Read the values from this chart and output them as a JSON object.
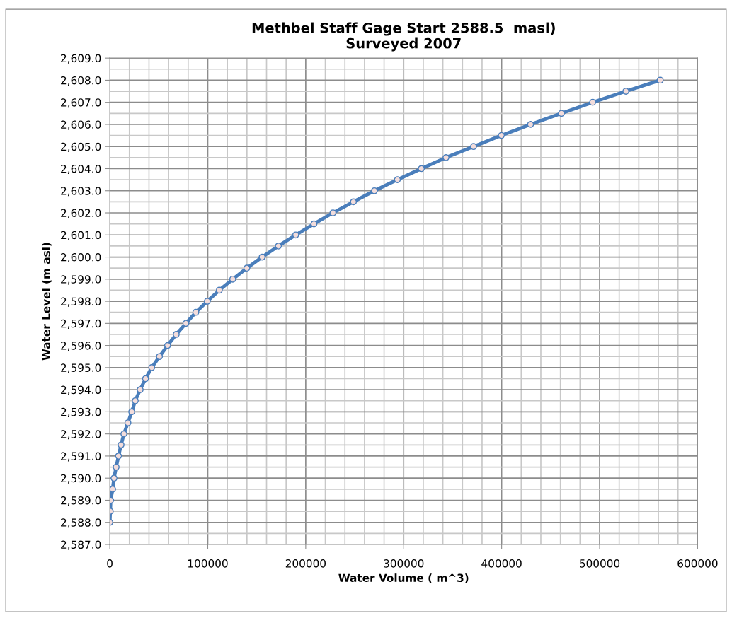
{
  "chart_data": {
    "type": "line",
    "title": "Methbel Staff Gage Start 2588.5  masl)\nSurveyed 2007",
    "xlabel": "Water Volume ( m^3)",
    "ylabel": "Water Level (m asl)",
    "x": [
      0,
      500,
      900,
      2900,
      4300,
      6500,
      8900,
      11500,
      14400,
      18500,
      22400,
      26000,
      31000,
      36500,
      42800,
      50700,
      59000,
      67800,
      77700,
      87800,
      99500,
      111800,
      125500,
      139900,
      155500,
      172100,
      189800,
      208400,
      227800,
      248700,
      270100,
      293600,
      318000,
      343200,
      371300,
      399700,
      429500,
      461000,
      492900,
      526800,
      561900
    ],
    "series": [
      {
        "color": "#4a7ebb",
        "values": [
          2588.0,
          2588.5,
          2589.0,
          2589.5,
          2590.0,
          2590.5,
          2591.0,
          2591.5,
          2592.0,
          2592.5,
          2593.0,
          2593.5,
          2594.0,
          2594.5,
          2595.0,
          2595.5,
          2596.0,
          2596.5,
          2597.0,
          2597.5,
          2598.0,
          2598.5,
          2599.0,
          2599.5,
          2600.0,
          2600.5,
          2601.0,
          2601.5,
          2602.0,
          2602.5,
          2603.0,
          2603.5,
          2604.0,
          2604.5,
          2605.0,
          2605.5,
          2606.0,
          2606.5,
          2607.0,
          2607.5,
          2608.0
        ]
      }
    ],
    "xlim": [
      0,
      600000
    ],
    "xticks": [
      0,
      100000,
      200000,
      300000,
      400000,
      500000,
      600000
    ],
    "ylim": [
      2587,
      2609
    ],
    "yticks": [
      {
        "value": 2587,
        "label": "2,587.0"
      },
      {
        "value": 2588,
        "label": "2,588.0"
      },
      {
        "value": 2589,
        "label": "2,589.0"
      },
      {
        "value": 2590,
        "label": "2,590.0"
      },
      {
        "value": 2591,
        "label": "2,591.0"
      },
      {
        "value": 2592,
        "label": "2,592.0"
      },
      {
        "value": 2593,
        "label": "2,593.0"
      },
      {
        "value": 2594,
        "label": "2,594.0"
      },
      {
        "value": 2595,
        "label": "2,595.0"
      },
      {
        "value": 2596,
        "label": "2,596.0"
      },
      {
        "value": 2597,
        "label": "2,597.0"
      },
      {
        "value": 2598,
        "label": "2,598.0"
      },
      {
        "value": 2599,
        "label": "2,599.0"
      },
      {
        "value": 2600,
        "label": "2,600.0"
      },
      {
        "value": 2601,
        "label": "2,601.0"
      },
      {
        "value": 2602,
        "label": "2,602.0"
      },
      {
        "value": 2603,
        "label": "2,603.0"
      },
      {
        "value": 2604,
        "label": "2,604.0"
      },
      {
        "value": 2605,
        "label": "2,605.0"
      },
      {
        "value": 2606,
        "label": "2,606.0"
      },
      {
        "value": 2607,
        "label": "2,607.0"
      },
      {
        "value": 2608,
        "label": "2,608.0"
      },
      {
        "value": 2609,
        "label": "2,609.0"
      }
    ],
    "grid": true,
    "marker": "circle",
    "line_style": "solid",
    "legend": false
  }
}
